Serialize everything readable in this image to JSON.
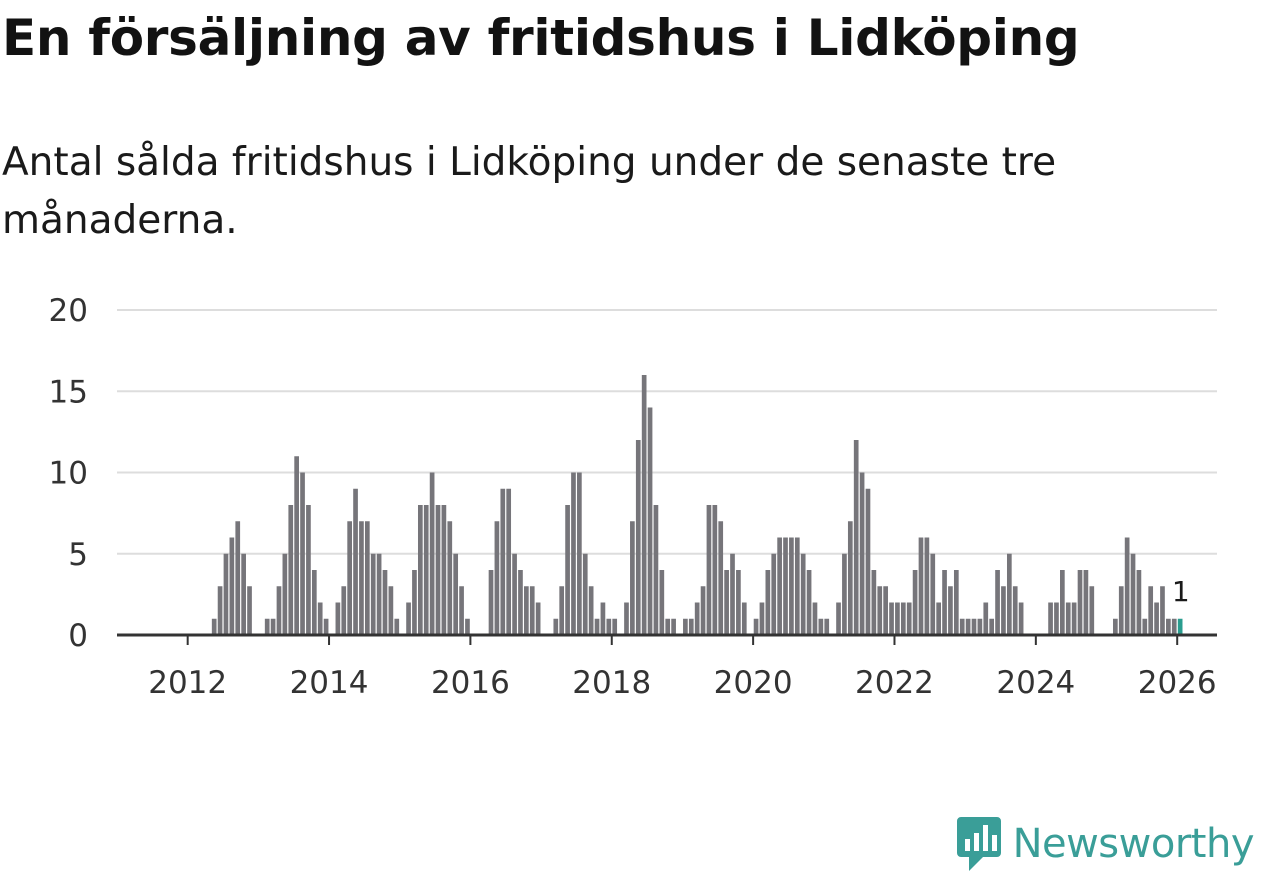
{
  "title": "En försäljning av fritidshus i Lidköping",
  "subtitle": "Antal sålda fritidshus i Lidköping under de senaste tre månaderna.",
  "brand": "Newsworthy",
  "colors": {
    "bar": "#76757a",
    "highlight": "#2a9d8f",
    "grid": "#dddddd",
    "axis": "#333333",
    "brand": "#3a9e98"
  },
  "chart_data": {
    "type": "bar",
    "title": "En försäljning av fritidshus i Lidköping",
    "ylim": [
      0,
      20
    ],
    "yticks": [
      0,
      5,
      10,
      15,
      20
    ],
    "xticks": [
      "2012",
      "2014",
      "2016",
      "2018",
      "2020",
      "2022",
      "2024",
      "2026"
    ],
    "start": "2011-01",
    "end": "2026-01",
    "grid": true,
    "values": [
      0,
      0,
      0,
      0,
      0,
      0,
      0,
      0,
      0,
      0,
      0,
      0,
      0,
      0,
      0,
      0,
      1,
      3,
      5,
      6,
      7,
      5,
      3,
      0,
      0,
      1,
      1,
      3,
      5,
      8,
      11,
      10,
      8,
      4,
      2,
      1,
      0,
      2,
      3,
      7,
      9,
      7,
      7,
      5,
      5,
      4,
      3,
      1,
      0,
      2,
      4,
      8,
      8,
      10,
      8,
      8,
      7,
      5,
      3,
      1,
      0,
      0,
      0,
      4,
      7,
      9,
      9,
      5,
      4,
      3,
      3,
      2,
      0,
      0,
      1,
      3,
      8,
      10,
      10,
      5,
      3,
      1,
      2,
      1,
      1,
      0,
      2,
      7,
      12,
      16,
      14,
      8,
      4,
      1,
      1,
      0,
      1,
      1,
      2,
      3,
      8,
      8,
      7,
      4,
      5,
      4,
      2,
      0,
      1,
      2,
      4,
      5,
      6,
      6,
      6,
      6,
      5,
      4,
      2,
      1,
      1,
      0,
      2,
      5,
      7,
      12,
      10,
      9,
      4,
      3,
      3,
      2,
      2,
      2,
      2,
      4,
      6,
      6,
      5,
      2,
      4,
      3,
      4,
      1,
      1,
      1,
      1,
      2,
      1,
      4,
      3,
      5,
      3,
      2,
      0,
      0,
      0,
      0,
      2,
      2,
      4,
      2,
      2,
      4,
      4,
      3,
      0,
      0,
      0,
      1,
      3,
      6,
      5,
      4,
      1,
      3,
      2,
      3,
      1,
      1
    ],
    "highlight": {
      "date": "2026-01",
      "value": 1,
      "label": "1"
    }
  }
}
